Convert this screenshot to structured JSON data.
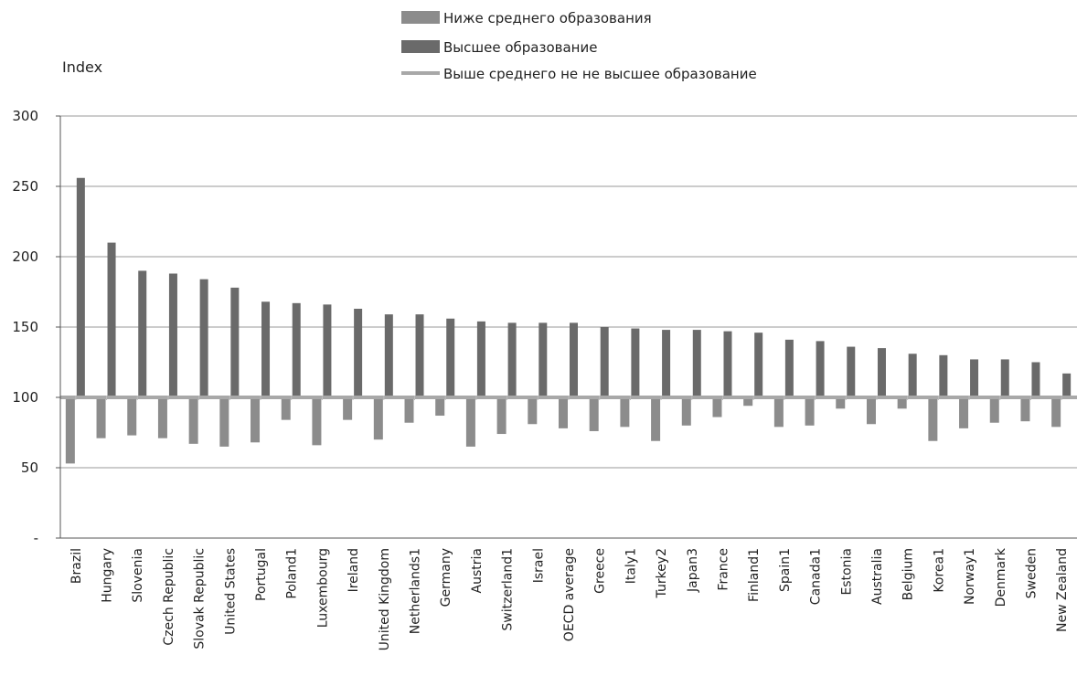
{
  "chart_data": {
    "type": "bar",
    "title": "",
    "xlabel": "",
    "ylabel": "Index",
    "ylim": [
      0,
      300
    ],
    "yticks": [
      0,
      50,
      100,
      150,
      200,
      250,
      300
    ],
    "ytick_labels": [
      "-",
      "50",
      "100",
      "150",
      "200",
      "250",
      "300"
    ],
    "baseline": 100,
    "grid": true,
    "legend_position": "top",
    "categories": [
      "Brazil",
      "Hungary",
      "Slovenia",
      "Czech Republic",
      "Slovak Republic",
      "United States",
      "Portugal",
      "Poland1",
      "Luxembourg",
      "Ireland",
      "United Kingdom",
      "Netherlands1",
      "Germany",
      "Austria",
      "Switzerland1",
      "Israel",
      "OECD average",
      "Greece",
      "Italy1",
      "Turkey2",
      "Japan3",
      "France",
      "Finland1",
      "Spain1",
      "Canada1",
      "Estonia",
      "Australia",
      "Belgium",
      "Korea1",
      "Norway1",
      "Denmark",
      "Sweden",
      "New Zealand"
    ],
    "series": [
      {
        "name": "Ниже среднего образования",
        "color": "#8c8c8c",
        "values": [
          53,
          71,
          73,
          71,
          67,
          65,
          68,
          84,
          66,
          84,
          70,
          82,
          87,
          65,
          74,
          81,
          78,
          76,
          79,
          69,
          80,
          86,
          94,
          79,
          80,
          92,
          81,
          92,
          69,
          78,
          82,
          83,
          79
        ]
      },
      {
        "name": "Высшее образование",
        "color": "#6a6a6a",
        "values": [
          256,
          210,
          190,
          188,
          184,
          178,
          168,
          167,
          166,
          163,
          159,
          159,
          156,
          154,
          153,
          153,
          153,
          150,
          149,
          148,
          148,
          147,
          146,
          141,
          140,
          136,
          135,
          131,
          130,
          127,
          127,
          125,
          117
        ]
      },
      {
        "name": "Выше среднего не не высшее образование",
        "color": "#a8a8a8",
        "values": [
          100,
          100,
          100,
          100,
          100,
          100,
          100,
          100,
          100,
          100,
          100,
          100,
          100,
          100,
          100,
          100,
          100,
          100,
          100,
          100,
          100,
          100,
          100,
          100,
          100,
          100,
          100,
          100,
          100,
          100,
          100,
          100,
          100
        ]
      }
    ]
  }
}
